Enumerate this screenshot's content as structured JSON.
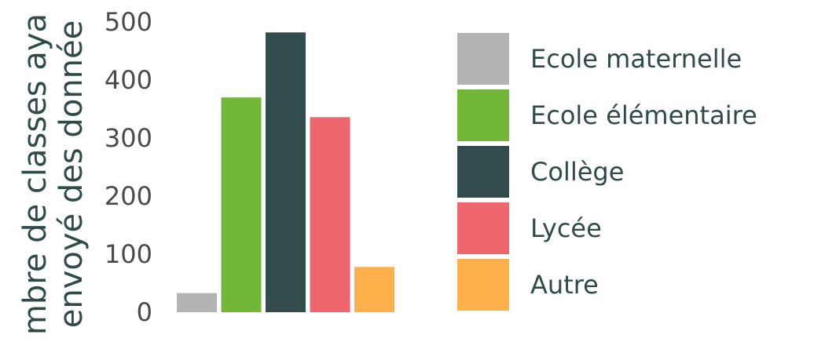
{
  "chart_data": {
    "type": "bar",
    "categories": [
      "Ecole maternelle",
      "Ecole élémentaire",
      "Collège",
      "Lycée",
      "Autre"
    ],
    "values": [
      33,
      370,
      482,
      336,
      78
    ],
    "colors": [
      "#b3b3b3",
      "#73b73a",
      "#324b4d",
      "#ee666b",
      "#ffb04a"
    ],
    "ylabel": [
      "mbre de classes aya",
      "envoyé des donnée"
    ],
    "yticks": [
      0,
      100,
      200,
      300,
      400,
      500
    ],
    "ylim": [
      0,
      500
    ],
    "grid": false,
    "legend": "right"
  }
}
